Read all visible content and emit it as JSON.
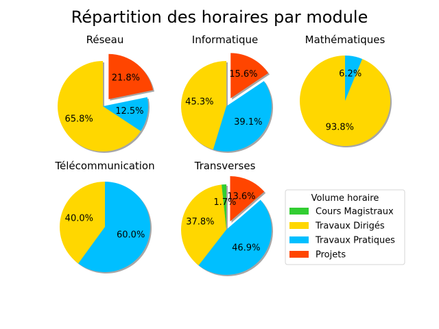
{
  "chart_data": {
    "type": "pie",
    "title": "Répartition des horaires par module",
    "categories": [
      "Cours Magistraux",
      "Travaux Dirigés",
      "Travaux Pratiques",
      "Projets"
    ],
    "colors": {
      "Cours Magistraux": "#32cd32",
      "Travaux Dirigés": "#ffd700",
      "Travaux Pratiques": "#00bfff",
      "Projets": "#ff4500"
    },
    "exploded": [
      "Projets"
    ],
    "start_angle_deg": 90,
    "shadow": true,
    "legend": {
      "title": "Volume horaire",
      "placement": "right",
      "items": [
        "Cours Magistraux",
        "Travaux Dirigés",
        "Travaux Pratiques",
        "Projets"
      ]
    },
    "charts": [
      {
        "title": "Réseau",
        "slices": [
          {
            "label": "Cours Magistraux",
            "value": 0
          },
          {
            "label": "Travaux Dirigés",
            "value": 65.8,
            "text": "65.8%"
          },
          {
            "label": "Travaux Pratiques",
            "value": 12.5,
            "text": "12.5%"
          },
          {
            "label": "Projets",
            "value": 21.8,
            "text": "21.8%"
          }
        ]
      },
      {
        "title": "Informatique",
        "slices": [
          {
            "label": "Cours Magistraux",
            "value": 0
          },
          {
            "label": "Travaux Dirigés",
            "value": 45.3,
            "text": "45.3%"
          },
          {
            "label": "Travaux Pratiques",
            "value": 39.1,
            "text": "39.1%"
          },
          {
            "label": "Projets",
            "value": 15.6,
            "text": "15.6%"
          }
        ]
      },
      {
        "title": "Mathématiques",
        "slices": [
          {
            "label": "Cours Magistraux",
            "value": 0
          },
          {
            "label": "Travaux Dirigés",
            "value": 93.8,
            "text": "93.8%"
          },
          {
            "label": "Travaux Pratiques",
            "value": 6.2,
            "text": "6.2%"
          },
          {
            "label": "Projets",
            "value": 0
          }
        ]
      },
      {
        "title": "Télécommunication",
        "slices": [
          {
            "label": "Cours Magistraux",
            "value": 0
          },
          {
            "label": "Travaux Dirigés",
            "value": 40.0,
            "text": "40.0%"
          },
          {
            "label": "Travaux Pratiques",
            "value": 60.0,
            "text": "60.0%"
          },
          {
            "label": "Projets",
            "value": 0
          }
        ]
      },
      {
        "title": "Transverses",
        "slices": [
          {
            "label": "Cours Magistraux",
            "value": 1.7,
            "text": "1.7%"
          },
          {
            "label": "Travaux Dirigés",
            "value": 37.8,
            "text": "37.8%"
          },
          {
            "label": "Travaux Pratiques",
            "value": 46.9,
            "text": "46.9%"
          },
          {
            "label": "Projets",
            "value": 13.6,
            "text": "13.6%"
          }
        ]
      }
    ]
  }
}
